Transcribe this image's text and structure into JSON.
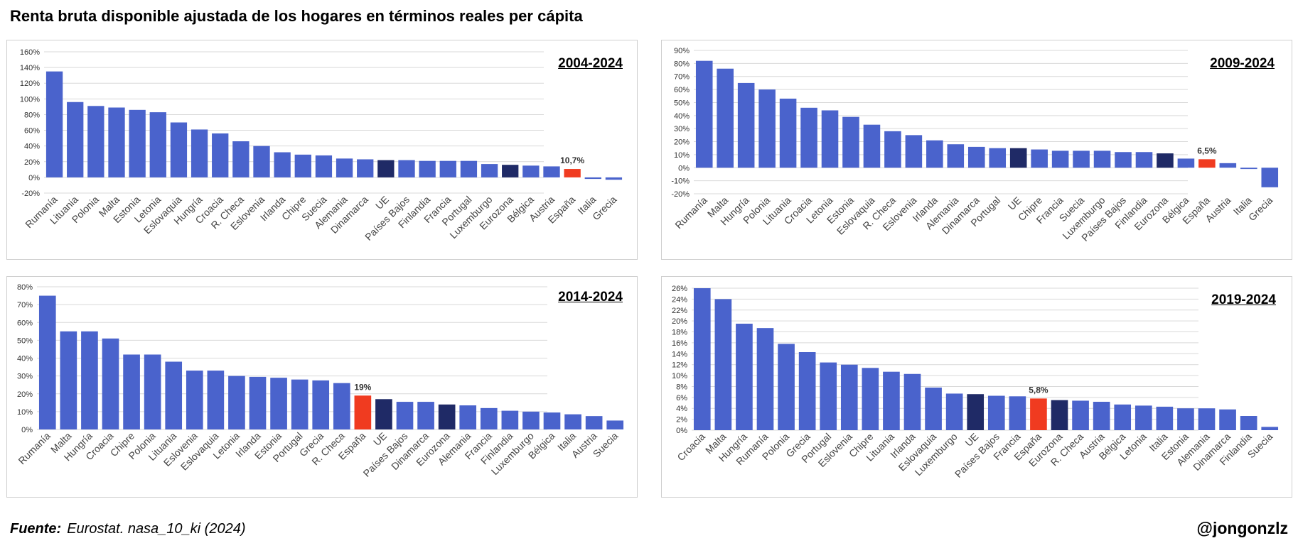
{
  "title": "Renta bruta disponible ajustada de los hogares en términos reales per cápita",
  "footer": {
    "source_label": "Fuente:",
    "source_text": "Eurostat. nasa_10_ki (2024)",
    "handle": "@jongonzlz"
  },
  "colors": {
    "bar": "#4a63cc",
    "highlight_eu": "#1f2a66",
    "highlight_es": "#f03b20",
    "grid": "#d9d9d9"
  },
  "chart_data": [
    {
      "type": "bar",
      "title": "2004-2024",
      "categories": [
        "Rumanía",
        "Lituania",
        "Polonia",
        "Malta",
        "Estonia",
        "Letonia",
        "Eslovaquia",
        "Hungría",
        "Croacia",
        "R. Checa",
        "Eslovenia",
        "Irlanda",
        "Chipre",
        "Suecia",
        "Alemania",
        "Dinamarca",
        "UE",
        "Países Bajos",
        "Finlandia",
        "Francia",
        "Portugal",
        "Luxemburgo",
        "Eurozona",
        "Bélgica",
        "Austria",
        "España",
        "Italia",
        "Grecia"
      ],
      "values": [
        135,
        96,
        91,
        89,
        86,
        83,
        70,
        61,
        56,
        46,
        40,
        32,
        29,
        28,
        24,
        23,
        22,
        22,
        21,
        21,
        21,
        17,
        16,
        15,
        14,
        10.7,
        -2,
        -3
      ],
      "ylim": [
        -20,
        160
      ],
      "yticks": [
        "-20%",
        "0%",
        "20%",
        "40%",
        "60%",
        "80%",
        "100%",
        "120%",
        "140%",
        "160%"
      ],
      "annotation": {
        "category": "España",
        "text": "10,7%"
      },
      "grid": true
    },
    {
      "type": "bar",
      "title": "2009-2024",
      "categories": [
        "Rumanía",
        "Malta",
        "Hungría",
        "Polonia",
        "Lituania",
        "Croacia",
        "Letonia",
        "Estonia",
        "Eslovaquia",
        "R. Checa",
        "Eslovenia",
        "Irlanda",
        "Alemania",
        "Dinamarca",
        "Portugal",
        "UE",
        "Chipre",
        "Francia",
        "Suecia",
        "Luxemburgo",
        "Países Bajos",
        "Finlandia",
        "Eurozona",
        "Bélgica",
        "España",
        "Austria",
        "Italia",
        "Grecia"
      ],
      "values": [
        82,
        76,
        65,
        60,
        53,
        46,
        44,
        39,
        33,
        28,
        25,
        21,
        18,
        16,
        15,
        15,
        14,
        13,
        13,
        13,
        12,
        12,
        11,
        7,
        6.5,
        3.5,
        -1,
        -15
      ],
      "ylim": [
        -20,
        90
      ],
      "yticks": [
        "-20%",
        "-10%",
        "0%",
        "10%",
        "20%",
        "30%",
        "40%",
        "50%",
        "60%",
        "70%",
        "80%",
        "90%"
      ],
      "annotation": {
        "category": "España",
        "text": "6,5%"
      },
      "grid": true
    },
    {
      "type": "bar",
      "title": "2014-2024",
      "categories": [
        "Rumanía",
        "Malta",
        "Hungría",
        "Croacia",
        "Chipre",
        "Polonia",
        "Lituania",
        "Eslovenia",
        "Eslovaquia",
        "Letonia",
        "Irlanda",
        "Estonia",
        "Portugal",
        "Grecia",
        "R. Checa",
        "España",
        "UE",
        "Países Bajos",
        "Dinamarca",
        "Eurozona",
        "Alemania",
        "Francia",
        "Finlandia",
        "Luxemburgo",
        "Bélgica",
        "Italia",
        "Austria",
        "Suecia"
      ],
      "values": [
        75,
        55,
        55,
        51,
        42,
        42,
        38,
        33,
        33,
        30,
        29.5,
        29,
        28,
        27.5,
        26,
        19,
        17,
        15.5,
        15.5,
        14,
        13.5,
        12,
        10.5,
        10,
        9.5,
        8.5,
        7.5,
        5
      ],
      "ylim": [
        0,
        80
      ],
      "yticks": [
        "0%",
        "10%",
        "20%",
        "30%",
        "40%",
        "50%",
        "60%",
        "70%",
        "80%"
      ],
      "annotation": {
        "category": "España",
        "text": "19%"
      },
      "grid": true
    },
    {
      "type": "bar",
      "title": "2019-2024",
      "categories": [
        "Croacia",
        "Malta",
        "Hungría",
        "Rumanía",
        "Polonia",
        "Grecia",
        "Portugal",
        "Eslovenia",
        "Chipre",
        "Lituania",
        "Irlanda",
        "Eslovaquia",
        "Luxemburgo",
        "UE",
        "Países Bajos",
        "Francia",
        "España",
        "Eurozona",
        "R. Checa",
        "Austria",
        "Bélgica",
        "Letonia",
        "Italia",
        "Estonia",
        "Alemania",
        "Dinamarca",
        "Finlandia",
        "Suecia"
      ],
      "values": [
        26,
        24,
        19.5,
        18.7,
        15.8,
        14.3,
        12.4,
        12,
        11.4,
        10.7,
        10.3,
        7.8,
        6.7,
        6.6,
        6.3,
        6.2,
        5.8,
        5.5,
        5.4,
        5.2,
        4.7,
        4.5,
        4.3,
        4,
        4,
        3.8,
        2.6,
        0.6
      ],
      "ylim": [
        0,
        26
      ],
      "yticks": [
        "0%",
        "2%",
        "4%",
        "6%",
        "8%",
        "10%",
        "12%",
        "14%",
        "16%",
        "18%",
        "20%",
        "22%",
        "24%",
        "26%"
      ],
      "annotation": {
        "category": "España",
        "text": "5,8%"
      },
      "grid": true
    }
  ]
}
